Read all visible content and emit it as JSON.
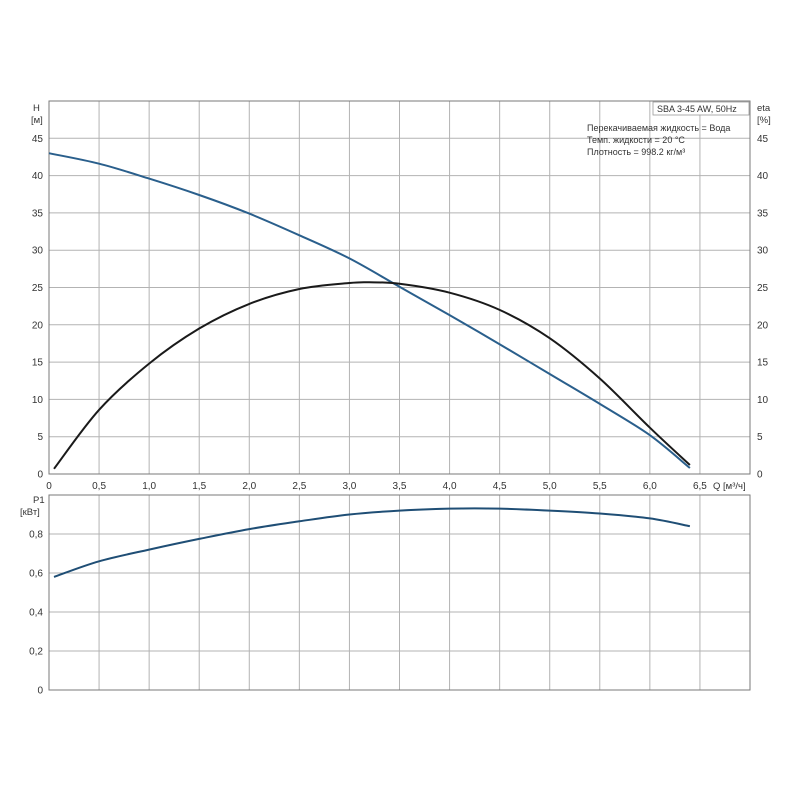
{
  "chart_data": [
    {
      "type": "line",
      "panel": "head-efficiency",
      "title": "SBA 3-45 AW, 50Hz",
      "info_lines": [
        "Перекачиваемая жидкость = Вода",
        "Темп. жидкости = 20 °C",
        "Плотность = 998.2 кг/м³"
      ],
      "xlabel": "Q [м³/ч]",
      "xlim": [
        0,
        7.0
      ],
      "x_ticks": [
        "0",
        "0,5",
        "1,0",
        "1,5",
        "2,0",
        "2,5",
        "3,0",
        "3,5",
        "4,0",
        "4,5",
        "5,0",
        "5,5",
        "6,0",
        "6,5"
      ],
      "ylabel_left": "H",
      "ylabel_left_unit": "[м]",
      "ylabel_right": "eta",
      "ylabel_right_unit": "[%]",
      "ylim": [
        0,
        50
      ],
      "y_ticks": [
        "0",
        "5",
        "10",
        "15",
        "20",
        "25",
        "30",
        "35",
        "40",
        "45"
      ],
      "grid": true,
      "series": [
        {
          "name": "H",
          "color": "#2a5f8c",
          "x": [
            0,
            0.5,
            1.0,
            1.5,
            2.0,
            2.5,
            3.0,
            3.5,
            4.0,
            4.5,
            5.0,
            5.5,
            6.0,
            6.4
          ],
          "y": [
            43.0,
            41.6,
            39.6,
            37.4,
            34.9,
            32.0,
            28.9,
            25.1,
            21.3,
            17.4,
            13.4,
            9.4,
            5.2,
            0.8
          ]
        },
        {
          "name": "eta",
          "color": "#1a1a1a",
          "x": [
            0.05,
            0.5,
            1.0,
            1.5,
            2.0,
            2.5,
            3.0,
            3.2,
            3.5,
            4.0,
            4.5,
            5.0,
            5.5,
            6.0,
            6.4
          ],
          "y": [
            0.7,
            8.6,
            14.8,
            19.5,
            22.8,
            24.8,
            25.6,
            25.7,
            25.5,
            24.3,
            22.0,
            18.2,
            12.8,
            6.2,
            1.2
          ]
        }
      ]
    },
    {
      "type": "line",
      "panel": "power",
      "xlim": [
        0,
        7.0
      ],
      "ylabel": "P1",
      "ylabel_unit": "[кВт]",
      "ylim": [
        0,
        1.0
      ],
      "y_ticks": [
        "0",
        "0,2",
        "0,4",
        "0,6",
        "0,8"
      ],
      "grid": true,
      "series": [
        {
          "name": "P1",
          "color": "#1f4e75",
          "x": [
            0.05,
            0.5,
            1.0,
            1.5,
            2.0,
            2.5,
            3.0,
            3.5,
            4.0,
            4.5,
            5.0,
            5.5,
            6.0,
            6.4
          ],
          "y": [
            0.58,
            0.66,
            0.72,
            0.775,
            0.825,
            0.865,
            0.9,
            0.92,
            0.93,
            0.93,
            0.92,
            0.905,
            0.88,
            0.84
          ]
        }
      ]
    }
  ]
}
